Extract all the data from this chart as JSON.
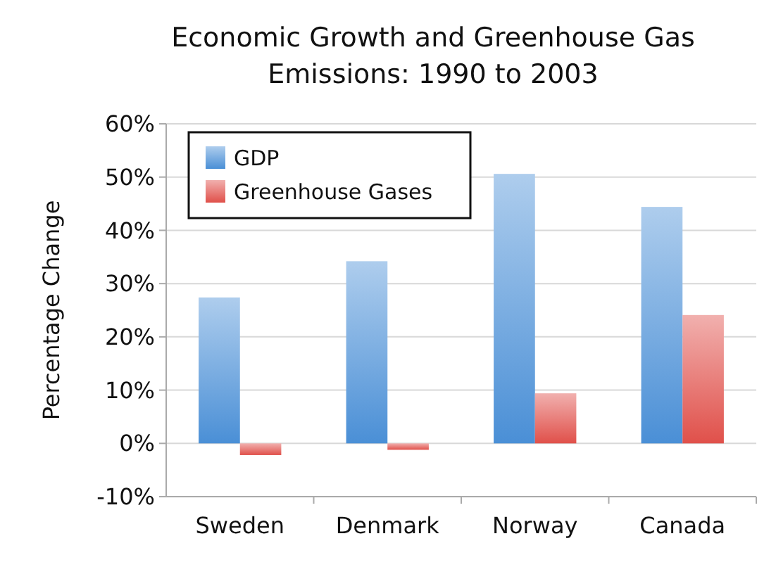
{
  "chart_data": {
    "type": "bar",
    "title": "Economic Growth and Greenhouse Gas Emissions: 1990 to 2003",
    "ylabel": "Percentage Change",
    "categories": [
      "Sweden",
      "Denmark",
      "Norway",
      "Canada"
    ],
    "series": [
      {
        "name": "GDP",
        "color": "#4a8fd6",
        "values": [
          27.4,
          34.2,
          50.6,
          44.4
        ]
      },
      {
        "name": "Greenhouse Gases",
        "color": "#e0504a",
        "values": [
          -2.2,
          -1.2,
          9.4,
          24.1
        ]
      }
    ],
    "ylim": [
      -10,
      60
    ],
    "yticks": [
      {
        "value": -10,
        "label": "-10%"
      },
      {
        "value": 0,
        "label": "0%"
      },
      {
        "value": 10,
        "label": "10%"
      },
      {
        "value": 20,
        "label": "20%"
      },
      {
        "value": 30,
        "label": "30%"
      },
      {
        "value": 40,
        "label": "40%"
      },
      {
        "value": 50,
        "label": "50%"
      },
      {
        "value": 60,
        "label": "60%"
      }
    ],
    "grid": "y",
    "legend": "top left"
  }
}
